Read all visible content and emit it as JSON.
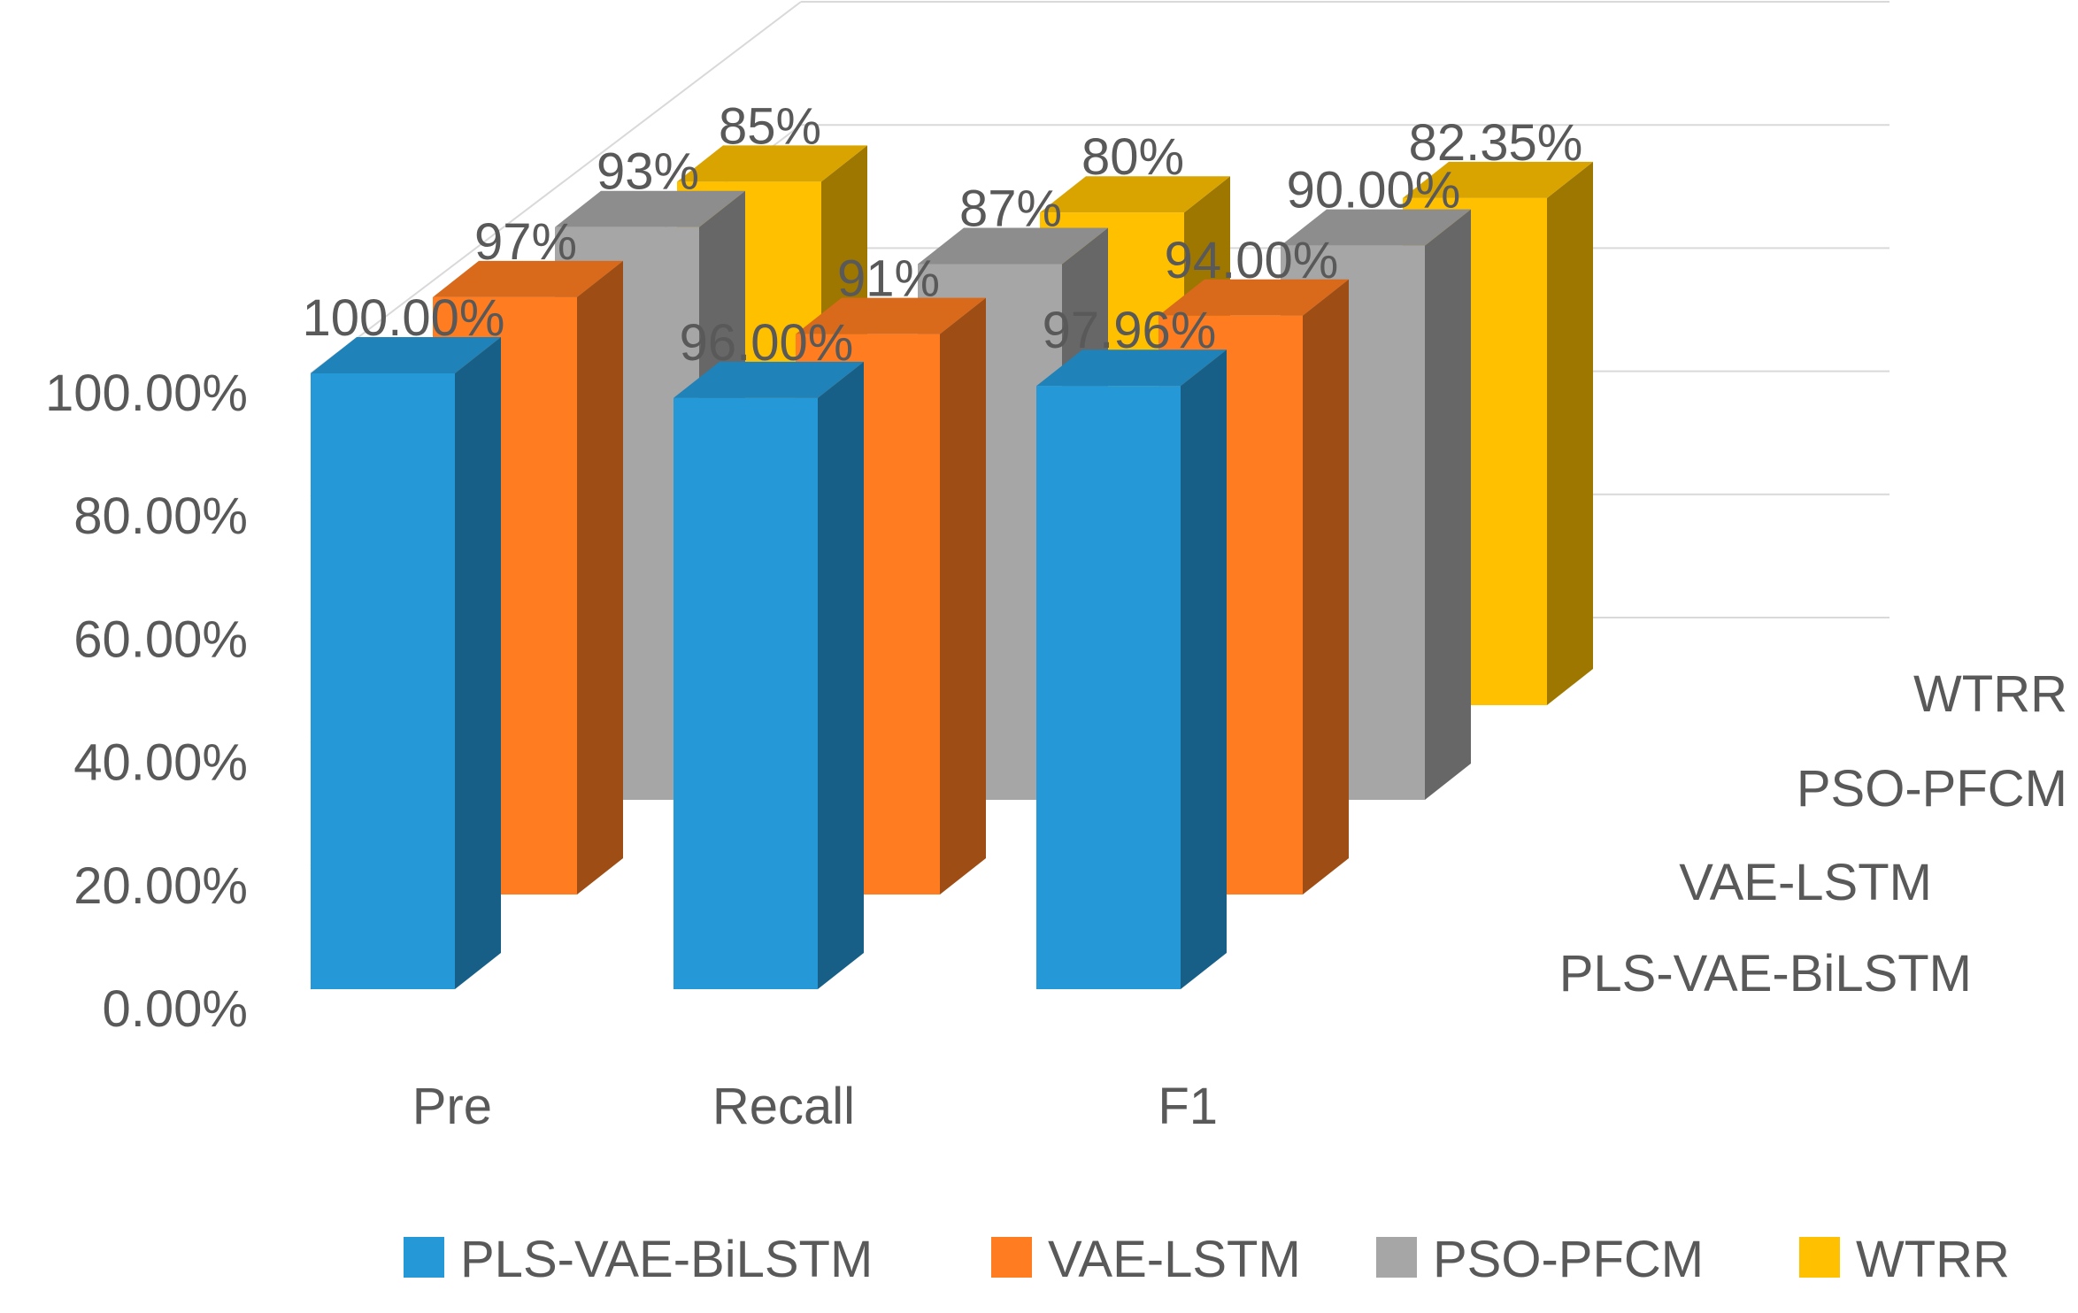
{
  "chart_data": {
    "type": "bar",
    "title": "",
    "xlabel": "",
    "ylabel": "",
    "categories": [
      "Pre",
      "Recall",
      "F1"
    ],
    "series": [
      {
        "name": "PLS-VAE-BiLSTM",
        "values": [
          100.0,
          96.0,
          97.96
        ],
        "labels": [
          "100.00%",
          "96.00%",
          "97.96%"
        ],
        "color": "#2599D8"
      },
      {
        "name": "VAE-LSTM",
        "values": [
          97,
          91,
          94.0
        ],
        "labels": [
          "97%",
          "91%",
          "94.00%"
        ],
        "color": "#FF7D20"
      },
      {
        "name": "PSO-PFCM",
        "values": [
          93,
          87,
          90.0
        ],
        "labels": [
          "93%",
          "87%",
          "90.00%"
        ],
        "color": "#A6A6A6"
      },
      {
        "name": "WTRR",
        "values": [
          85,
          80,
          82.35
        ],
        "labels": [
          "85%",
          "80%",
          "82.35%"
        ],
        "color": "#FFC000"
      }
    ],
    "ylim": [
      0,
      100
    ],
    "yticks": [
      "0.00%",
      "20.00%",
      "40.00%",
      "60.00%",
      "80.00%",
      "100.00%"
    ],
    "depth_axis_labels": [
      "PLS-VAE-BiLSTM",
      "VAE-LSTM",
      "PSO-PFCM",
      "WTRR"
    ],
    "legend_position": "bottom",
    "grid": true,
    "projection": "3d-column"
  }
}
